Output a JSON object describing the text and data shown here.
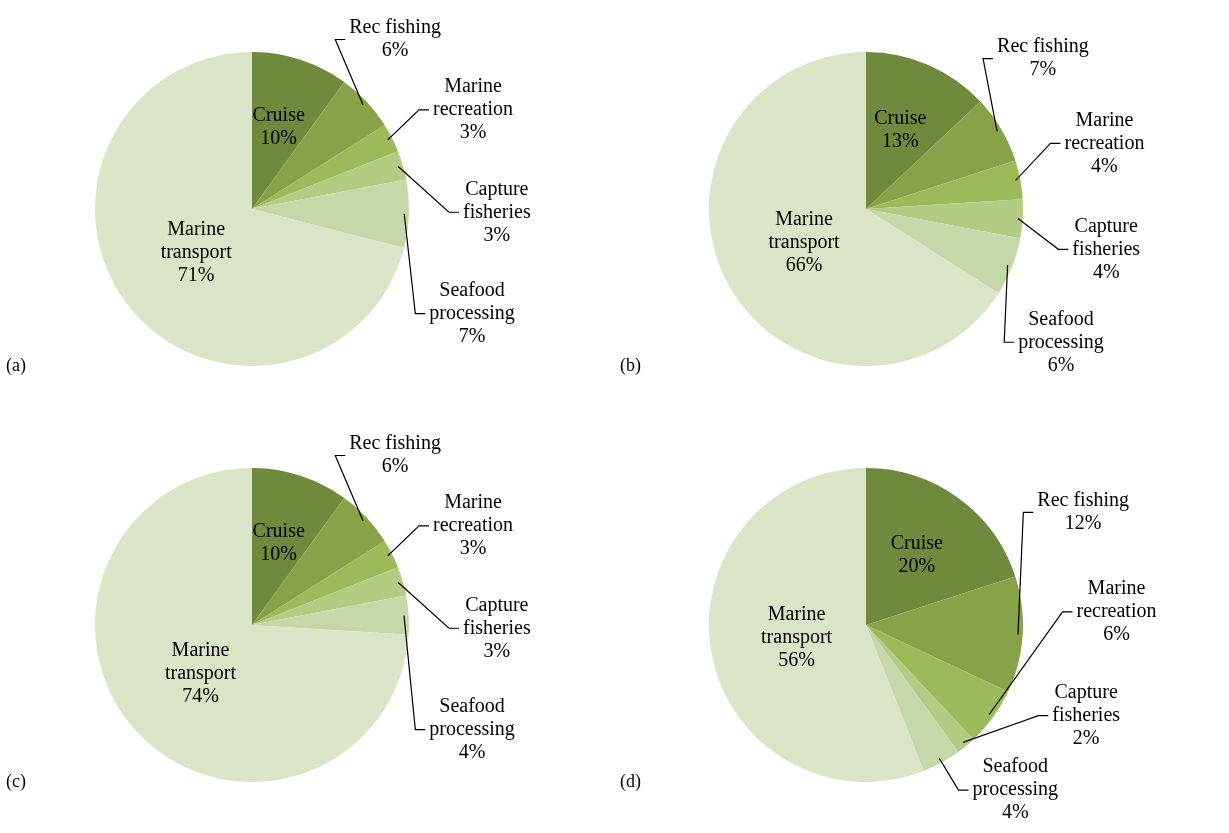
{
  "chart_data": [
    {
      "type": "pie",
      "annotations": [
        "(a)"
      ],
      "categories": [
        "Cruise",
        "Rec fishing",
        "Marine recreation",
        "Capture fisheries",
        "Seafood processing",
        "Marine transport"
      ],
      "values": [
        10,
        6,
        3,
        3,
        7,
        71
      ],
      "value_labels": [
        "10%",
        "6%",
        "3%",
        "3%",
        "7%",
        "71%"
      ],
      "colors": [
        "#6f8a3c",
        "#87a249",
        "#9cba5a",
        "#b3cc83",
        "#c6d8aa",
        "#d9e5c6"
      ]
    },
    {
      "type": "pie",
      "annotations": [
        "(b)"
      ],
      "categories": [
        "Cruise",
        "Rec fishing",
        "Marine recreation",
        "Capture fisheries",
        "Seafood processing",
        "Marine transport"
      ],
      "values": [
        13,
        7,
        4,
        4,
        6,
        66
      ],
      "value_labels": [
        "13%",
        "7%",
        "4%",
        "4%",
        "6%",
        "66%"
      ],
      "colors": [
        "#6f8a3c",
        "#87a249",
        "#9cba5a",
        "#b3cc83",
        "#c6d8aa",
        "#d9e5c6"
      ]
    },
    {
      "type": "pie",
      "annotations": [
        "(c)"
      ],
      "categories": [
        "Cruise",
        "Rec fishing",
        "Marine recreation",
        "Capture fisheries",
        "Seafood processing",
        "Marine transport"
      ],
      "values": [
        10,
        6,
        3,
        3,
        4,
        74
      ],
      "value_labels": [
        "10%",
        "6%",
        "3%",
        "3%",
        "4%",
        "74%"
      ],
      "colors": [
        "#6f8a3c",
        "#87a249",
        "#9cba5a",
        "#b3cc83",
        "#c6d8aa",
        "#d9e5c6"
      ]
    },
    {
      "type": "pie",
      "annotations": [
        "(d)"
      ],
      "categories": [
        "Cruise",
        "Rec fishing",
        "Marine recreation",
        "Capture fisheries",
        "Seafood processing",
        "Marine transport"
      ],
      "values": [
        20,
        12,
        6,
        2,
        4,
        56
      ],
      "value_labels": [
        "20%",
        "12%",
        "6%",
        "2%",
        "4%",
        "56%"
      ],
      "colors": [
        "#6f8a3c",
        "#87a249",
        "#9cba5a",
        "#b3cc83",
        "#c6d8aa",
        "#d9e5c6"
      ]
    }
  ]
}
